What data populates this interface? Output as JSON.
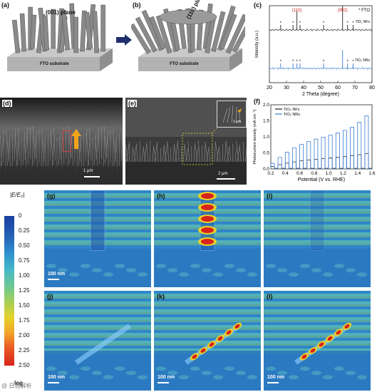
{
  "panels": {
    "a": {
      "label": "(a)",
      "plane": "(001) plane",
      "substrate": "FTO substrate"
    },
    "b": {
      "label": "(b)",
      "plane": "(110) plane",
      "substrate": "FTO substrate"
    },
    "c": {
      "label": "(c)"
    },
    "d": {
      "label": "(d)",
      "scale": "1 μm"
    },
    "e": {
      "label": "(e)",
      "scale": "2 μm",
      "inset_scale": "1 μm"
    },
    "f": {
      "label": "(f)"
    },
    "g": {
      "label": "(g)",
      "scale": "100 nm"
    },
    "h": {
      "label": "(h)",
      "scale": ""
    },
    "i": {
      "label": "(i)",
      "scale": ""
    },
    "j": {
      "label": "(j)",
      "scale": "100 nm"
    },
    "k": {
      "label": "(k)",
      "scale": "100 nm"
    },
    "l": {
      "label": "(l)",
      "scale": "100 nm"
    }
  },
  "colorbar": {
    "title": "|E/E₀|",
    "ticks": [
      "0",
      "0.25",
      "0.50",
      "0.75",
      "1.00",
      "1.25",
      "1.50",
      "1.75",
      "2.00",
      "2.25",
      "2.50"
    ],
    "footer": "log"
  },
  "watermark": "@ 日物解析",
  "chart_data": [
    {
      "type": "line",
      "panel": "c",
      "title": "",
      "xlabel": "2 Theta (degree)",
      "ylabel": "Intensity (a.u.)",
      "xlim": [
        20,
        80
      ],
      "x_ticks": [
        "20",
        "30",
        "40",
        "50",
        "60",
        "70",
        "80"
      ],
      "legend": "* FTO",
      "annotations": [
        "(110)",
        "(002)"
      ],
      "series": [
        {
          "name": "TiO₂ NFs",
          "peaks_x": [
            26.6,
            33.8,
            36.1,
            37.9,
            51.7,
            62.8,
            65.7,
            69.0
          ],
          "color": "#222222"
        },
        {
          "name": "TiO₂ NRs",
          "peaks_x": [
            26.6,
            33.8,
            36.1,
            37.9,
            51.7,
            62.8,
            65.7,
            69.0
          ],
          "color": "#3a7bd5"
        }
      ]
    },
    {
      "type": "line",
      "panel": "f",
      "title": "",
      "xlabel": "Potential (V vs. RHE)",
      "ylabel": "Photocurrent density (mA cm⁻²)",
      "xlim": [
        0.2,
        1.6
      ],
      "ylim": [
        0,
        2.0
      ],
      "x_ticks": [
        "0.2",
        "0.4",
        "0.6",
        "0.8",
        "1.0",
        "1.2",
        "1.4",
        "1.6"
      ],
      "y_ticks": [
        "0.0",
        "0.5",
        "1.0",
        "1.5",
        "2.0"
      ],
      "legend": "top-left",
      "series": [
        {
          "name": "TiO₂ NFs",
          "x": [
            0.2,
            0.4,
            0.6,
            0.8,
            1.0,
            1.2,
            1.4,
            1.6
          ],
          "y": [
            0.05,
            0.16,
            0.24,
            0.29,
            0.33,
            0.37,
            0.43,
            0.49
          ],
          "color": "#222222"
        },
        {
          "name": "TiO₂ NRs",
          "x": [
            0.2,
            0.4,
            0.6,
            0.8,
            1.0,
            1.2,
            1.4,
            1.6
          ],
          "y": [
            0.08,
            0.45,
            0.72,
            0.9,
            1.02,
            1.15,
            1.35,
            1.75
          ],
          "color": "#3a7bd5"
        }
      ]
    }
  ]
}
